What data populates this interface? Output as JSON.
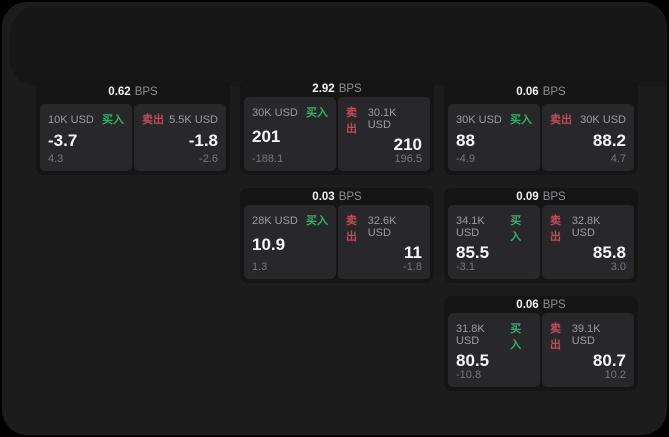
{
  "window": {
    "outer_background": "#000000",
    "background": "#1c1c1d"
  },
  "labels": {
    "bps_unit": "BPS",
    "buy": "买入",
    "sell": "卖出"
  },
  "colors": {
    "buy_green": "#2fb167",
    "sell_red": "#c34a5e",
    "card_bg": "#151516",
    "pane_bg": "#28282a"
  },
  "cards": [
    {
      "col": 0,
      "row": 0,
      "bps": "0.62",
      "buy": {
        "notional": "10K USD",
        "value": "-3.7",
        "change": "4.3"
      },
      "sell": {
        "notional": "5.5K USD",
        "value": "-1.8",
        "change": "-2.6"
      }
    },
    {
      "col": 1,
      "row": 0,
      "bps": "2.92",
      "buy": {
        "notional": "30K USD",
        "value": "201",
        "change": "-188.1"
      },
      "sell": {
        "notional": "30.1K USD",
        "value": "210",
        "change": "196.5"
      }
    },
    {
      "col": 2,
      "row": 0,
      "bps": "0.06",
      "buy": {
        "notional": "30K USD",
        "value": "88",
        "change": "-4.9"
      },
      "sell": {
        "notional": "30K USD",
        "value": "88.2",
        "change": "4.7"
      }
    },
    {
      "col": 1,
      "row": 1,
      "bps": "0.03",
      "buy": {
        "notional": "28K USD",
        "value": "10.9",
        "change": "1.3"
      },
      "sell": {
        "notional": "32.6K USD",
        "value": "11",
        "change": "-1.8"
      }
    },
    {
      "col": 2,
      "row": 1,
      "bps": "0.09",
      "buy": {
        "notional": "34.1K USD",
        "value": "85.5",
        "change": "-3.1"
      },
      "sell": {
        "notional": "32.8K USD",
        "value": "85.8",
        "change": "3.0"
      }
    },
    {
      "col": 2,
      "row": 2,
      "bps": "0.06",
      "buy": {
        "notional": "31.8K USD",
        "value": "80.5",
        "change": "-10.8"
      },
      "sell": {
        "notional": "39.1K USD",
        "value": "80.7",
        "change": "10.2"
      }
    }
  ]
}
